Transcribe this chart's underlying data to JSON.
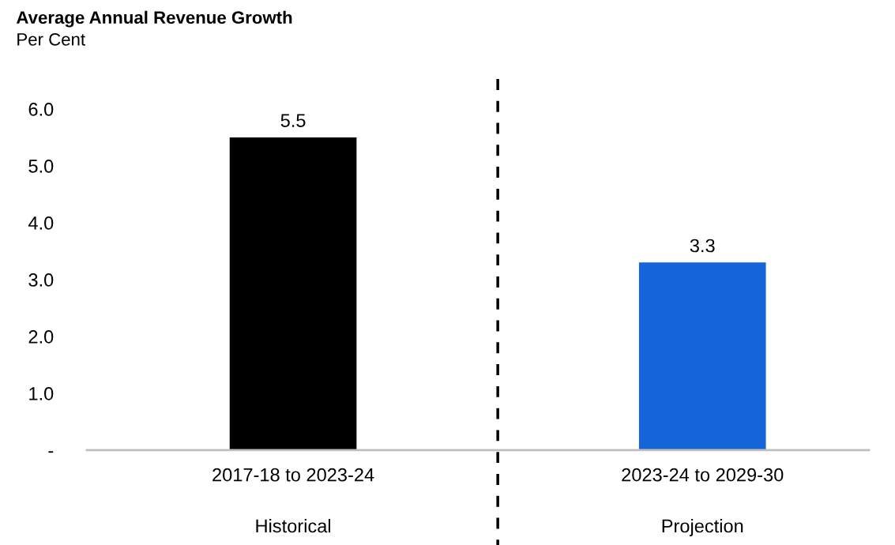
{
  "chart_data": {
    "type": "bar",
    "title": "Average Annual Revenue Growth",
    "subtitle": "Per Cent",
    "categories": [
      "2017-18 to 2023-24",
      "2023-24 to 2029-30"
    ],
    "values": [
      5.5,
      3.3
    ],
    "colors": [
      "#000000",
      "#1565d8"
    ],
    "data_labels": true,
    "ylim": [
      0,
      6.0
    ],
    "yticks": [
      {
        "value": 0,
        "label": "-"
      },
      {
        "value": 1,
        "label": "1.0"
      },
      {
        "value": 2,
        "label": "2.0"
      },
      {
        "value": 3,
        "label": "3.0"
      },
      {
        "value": 4,
        "label": "4.0"
      },
      {
        "value": 5,
        "label": "5.0"
      },
      {
        "value": 6,
        "label": "6.0"
      }
    ],
    "grid": false,
    "legend": false,
    "annotations": [
      "Historical",
      "Projection"
    ]
  }
}
